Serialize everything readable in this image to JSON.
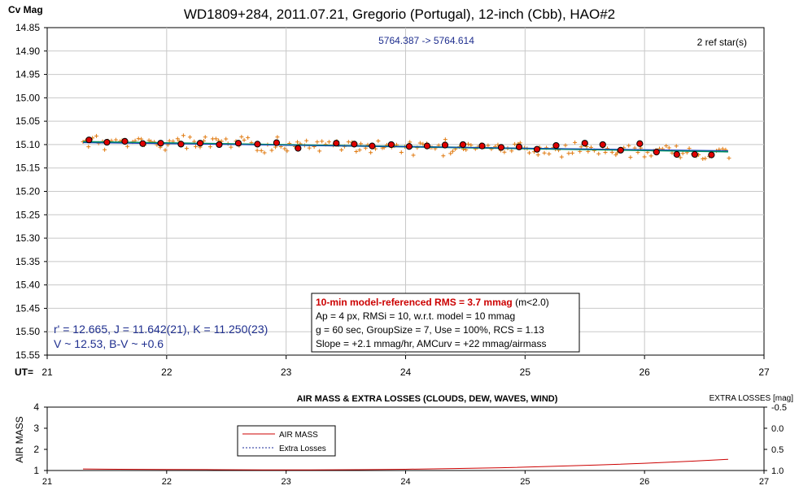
{
  "chart_data": [
    {
      "type": "scatter",
      "title": "WD1809+284, 2011.07.21, Gregorio (Portugal), 12-inch (Cbb), HAO#2",
      "ylabel": "Cv Mag",
      "xlabel": "UT=",
      "xlim": [
        21,
        27
      ],
      "ylim": [
        15.55,
        14.85
      ],
      "y_inverted": true,
      "grid": true,
      "xticks": [
        "21",
        "22",
        "23",
        "24",
        "25",
        "26",
        "27"
      ],
      "yticks": [
        "14.85",
        "14.90",
        "14.95",
        "15.00",
        "15.05",
        "15.10",
        "15.15",
        "15.20",
        "15.25",
        "15.30",
        "15.35",
        "15.40",
        "15.45",
        "15.50",
        "15.55"
      ],
      "jd_range_text": "5764.387 -> 5764.614",
      "ref_stars_text": "2 ref star(s)",
      "magnitudes": {
        "line1": "r' = 12.665, J = 11.642(21), K = 11.250(23)",
        "line2": "V ~ 12.53, B-V ~ +0.6"
      },
      "stats": {
        "rms_label": "10-min model-referenced RMS = 3.7 mmag",
        "rms_suffix": " (m<2.0)",
        "line2": "Ap = 4 px, RMSi = 10, w.r.t. model = 10 mmag",
        "line3": "g = 60 sec, GroupSize = 7, Use = 100%, RCS = 1.13",
        "line4": "Slope = +2.1 mmag/hr, AMCurv = +22 mmag/airmass"
      },
      "colors": {
        "raw": "#e07a10",
        "binned": "#e00000",
        "model": "#009060",
        "fit": "#1a40c0",
        "title_text": "#000000",
        "annotation_text": "#1f2f8f",
        "rms_text": "#cc0000"
      },
      "model_line": {
        "x": [
          21.3,
          26.7
        ],
        "y": [
          15.094,
          15.115
        ]
      },
      "fit_line": {
        "x": [
          21.3,
          26.7
        ],
        "y": [
          15.096,
          15.113
        ]
      },
      "binned_series": {
        "x": [
          21.35,
          21.5,
          21.65,
          21.8,
          21.95,
          22.12,
          22.28,
          22.44,
          22.6,
          22.76,
          22.92,
          23.1,
          23.42,
          23.57,
          23.72,
          23.88,
          24.03,
          24.18,
          24.33,
          24.48,
          24.64,
          24.8,
          24.95,
          25.1,
          25.26,
          25.5,
          25.65,
          25.8,
          25.96,
          26.1,
          26.27,
          26.42,
          26.56
        ],
        "y": [
          15.09,
          15.095,
          15.093,
          15.098,
          15.097,
          15.099,
          15.097,
          15.1,
          15.097,
          15.099,
          15.096,
          15.108,
          15.097,
          15.099,
          15.103,
          15.1,
          15.104,
          15.103,
          15.101,
          15.1,
          15.103,
          15.106,
          15.105,
          15.11,
          15.102,
          15.097,
          15.1,
          15.112,
          15.098,
          15.116,
          15.121,
          15.121,
          15.122
        ]
      },
      "raw_scatter": {
        "x_start": 21.3,
        "x_end": 26.7,
        "count": 200,
        "y_start": 15.093,
        "y_end": 15.118,
        "spread": 0.02
      }
    },
    {
      "type": "line",
      "title": "AIR MASS & EXTRA LOSSES (CLOUDS, DEW, WAVES, WIND)",
      "ylabel": "AIR MASS",
      "ylabel_right": "EXTRA LOSSES [mag]",
      "xlim": [
        21,
        27
      ],
      "ylim": [
        1,
        4
      ],
      "ylim_right": [
        1.0,
        -0.5
      ],
      "xticks": [
        "21",
        "22",
        "23",
        "24",
        "25",
        "26",
        "27"
      ],
      "yticks": [
        "1",
        "2",
        "3",
        "4"
      ],
      "yticks_right": [
        "-0.5",
        "0.0",
        "0.5",
        "1.0"
      ],
      "legend": {
        "placement": "top-left",
        "air_mass_label": "AIR MASS",
        "extra_losses_label": "Extra Losses"
      },
      "series": [
        {
          "name": "AIR MASS",
          "color": "#cc0000",
          "x": [
            21.3,
            21.6,
            22.0,
            22.4,
            22.8,
            23.2,
            23.6,
            24.0,
            24.4,
            24.8,
            25.2,
            25.6,
            26.0,
            26.4,
            26.7
          ],
          "values": [
            1.07,
            1.06,
            1.05,
            1.04,
            1.03,
            1.03,
            1.04,
            1.06,
            1.09,
            1.13,
            1.19,
            1.26,
            1.34,
            1.44,
            1.53
          ]
        }
      ]
    }
  ]
}
